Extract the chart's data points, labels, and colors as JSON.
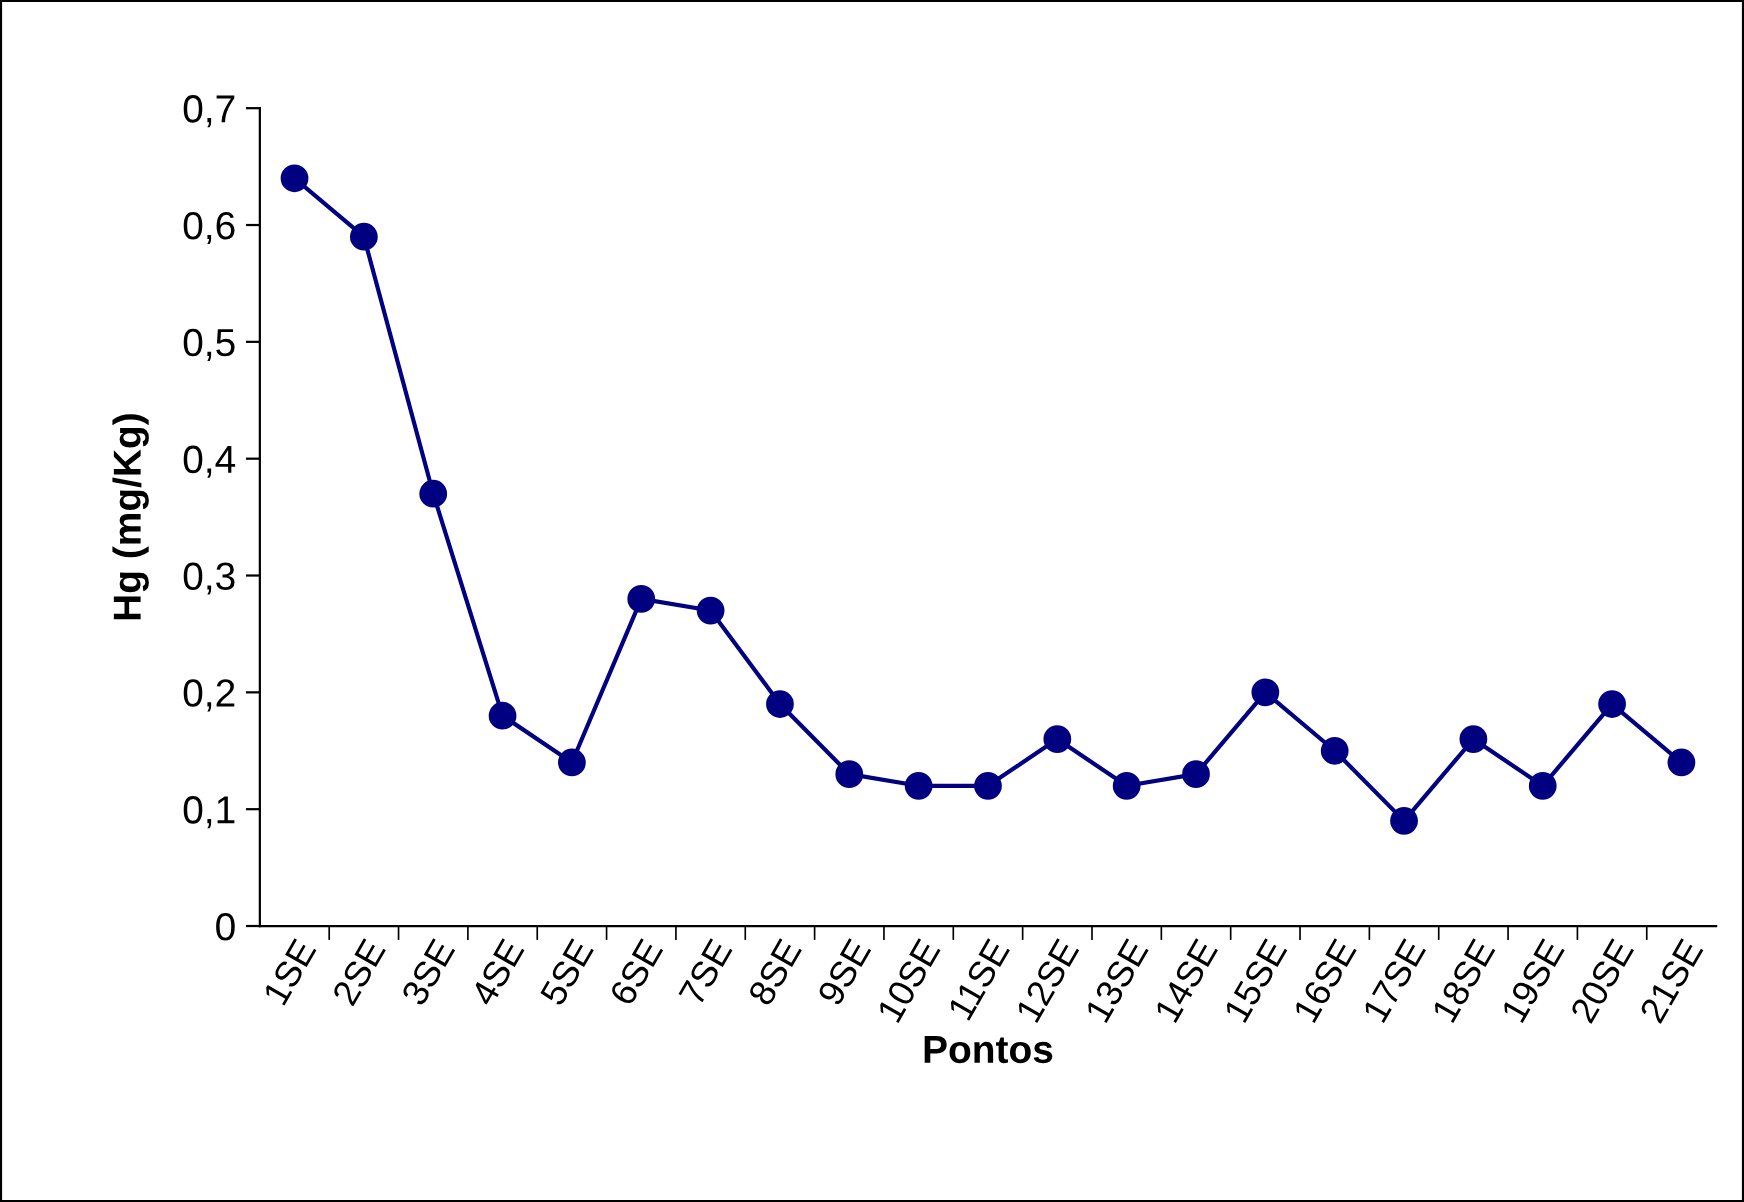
{
  "chart_data": {
    "type": "line",
    "xlabel": "Pontos",
    "ylabel": "Hg (mg/Kg)",
    "categories": [
      "1SE",
      "2SE",
      "3SE",
      "4SE",
      "5SE",
      "6SE",
      "7SE",
      "8SE",
      "9SE",
      "10SE",
      "11SE",
      "12SE",
      "13SE",
      "14SE",
      "15SE",
      "16SE",
      "17SE",
      "18SE",
      "19SE",
      "20SE",
      "21SE"
    ],
    "series": [
      {
        "color": "#000080",
        "values": [
          0.64,
          0.59,
          0.37,
          0.18,
          0.14,
          0.28,
          0.27,
          0.19,
          0.13,
          0.12,
          0.12,
          0.16,
          0.12,
          0.13,
          0.2,
          0.15,
          0.09,
          0.16,
          0.12,
          0.19,
          0.14
        ]
      }
    ],
    "ylim": [
      0,
      0.7
    ],
    "yticks": [
      0,
      {
        "value": 0.1,
        "label": "0,1"
      },
      {
        "value": 0.2,
        "label": "0,2"
      },
      {
        "value": 0.3,
        "label": "0,3"
      },
      {
        "value": 0.4,
        "label": "0,4"
      },
      {
        "value": 0.5,
        "label": "0,5"
      },
      {
        "value": 0.6,
        "label": "0,6"
      },
      {
        "value": 0.7,
        "label": "0,7"
      }
    ],
    "grid": false,
    "legend": false,
    "marker": "circle",
    "line_style": "solid"
  }
}
